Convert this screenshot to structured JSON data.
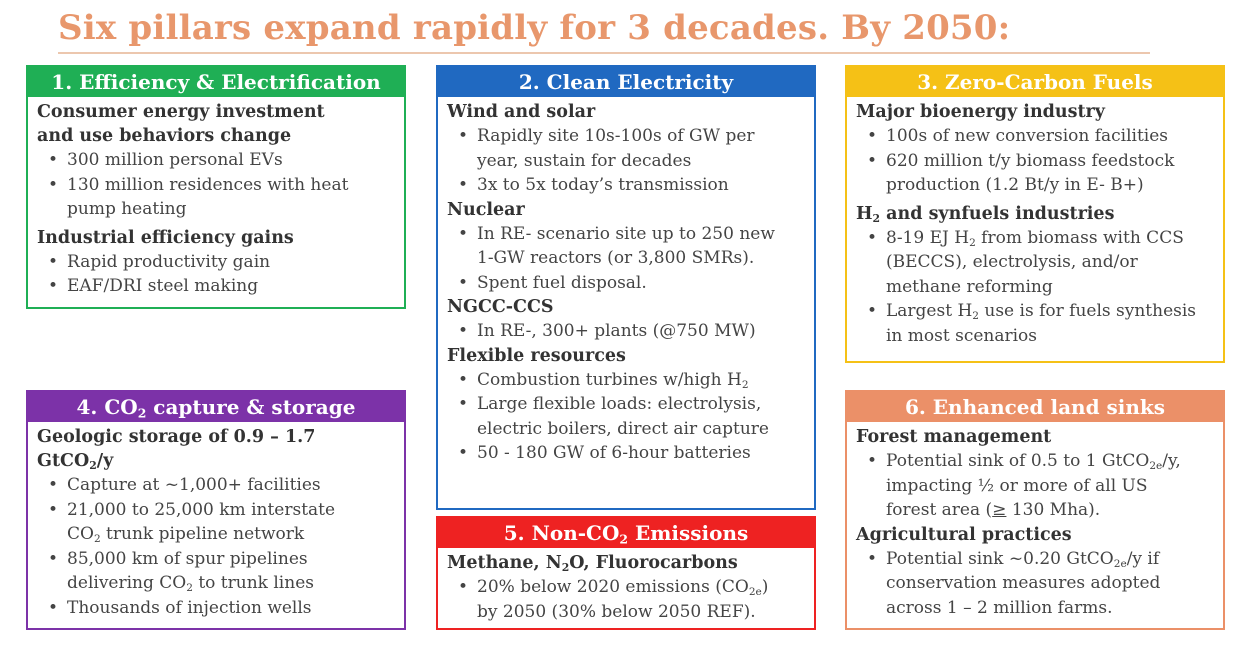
{
  "title": "Six pillars expand rapidly for 3 decades.  By 2050:",
  "pillars": {
    "efficiency": {
      "header": "1. Efficiency & Electrification",
      "s1_line1": "Consumer energy investment",
      "s1_line2": "and use behaviors change",
      "s1_b1": "300 million personal EVs",
      "s1_b2_l1": "130 million residences with heat",
      "s1_b2_l2": "pump heating",
      "s2": "Industrial efficiency gains",
      "s2_b1": "Rapid productivity gain",
      "s2_b2": "EAF/DRI steel making"
    },
    "clean": {
      "header": "2. Clean Electricity",
      "s1": "Wind and solar",
      "s1_b1_l1": "Rapidly site 10s-100s of GW per",
      "s1_b1_l2": "year, sustain for decades",
      "s1_b2": "3x to 5x today’s transmission",
      "s2": "Nuclear",
      "s2_b1_l1": "In RE- scenario site up to 250 new",
      "s2_b1_l2": "1-GW reactors (or 3,800 SMRs).",
      "s2_b2": "Spent fuel disposal.",
      "s3": "NGCC-CCS",
      "s3_b1": "In RE-, 300+ plants (@750 MW)",
      "s4": "Flexible resources",
      "s4_b1_pre": "Combustion turbines w/high H",
      "s4_b1_sub": "2",
      "s4_b2_l1": "Large flexible loads: electrolysis,",
      "s4_b2_l2": "electric boilers, direct air capture",
      "s4_b3": "50 - 180 GW of 6-hour batteries"
    },
    "fuels": {
      "header": "3. Zero-Carbon Fuels",
      "s1": "Major bioenergy industry",
      "s1_b1": "100s of new conversion facilities",
      "s1_b2_l1": "620 million t/y biomass feedstock",
      "s1_b2_l2": "production (1.2 Bt/y in E- B+)",
      "s2_pre": "H",
      "s2_sub": "2",
      "s2_post": " and synfuels industries",
      "s2_b1_pre": "8-19 EJ H",
      "s2_b1_sub": "2",
      "s2_b1_post": " from biomass with CCS",
      "s2_b1_l2": "(BECCS), electrolysis, and/or",
      "s2_b1_l3": "methane reforming",
      "s2_b2_pre": "Largest H",
      "s2_b2_sub": "2",
      "s2_b2_post": " use is for fuels synthesis",
      "s2_b2_l2": "in most scenarios"
    },
    "capture": {
      "header_pre": "4. CO",
      "header_sub": "2",
      "header_post": " capture & storage",
      "s1_l1": "Geologic storage of 0.9 – 1.7",
      "s1_l2_pre": "GtCO",
      "s1_l2_sub": "2",
      "s1_l2_post": "/y",
      "b1": "Capture at ~1,000+ facilities",
      "b2_l1": "21,000 to 25,000 km interstate",
      "b2_l2_pre": "CO",
      "b2_l2_sub": "2",
      "b2_l2_post": " trunk pipeline network",
      "b3_l1": "85,000 km of spur pipelines",
      "b3_l2_pre": "delivering CO",
      "b3_l2_sub": "2",
      "b3_l2_post": " to trunk lines",
      "b4": "Thousands of injection wells"
    },
    "nonco2": {
      "header_pre": "5. Non-CO",
      "header_sub": "2",
      "header_post": " Emissions",
      "s1_pre": "Methane, N",
      "s1_sub": "2",
      "s1_post": "O, Fluorocarbons",
      "b1_pre": "20% below 2020 emissions (CO",
      "b1_sub": "2e",
      "b1_post": ")",
      "b1_l2": "by 2050 (30% below 2050 REF)."
    },
    "land": {
      "header": "6. Enhanced land sinks",
      "s1": "Forest management",
      "b1_pre": "Potential sink of 0.5 to 1 GtCO",
      "b1_sub": "2e",
      "b1_post": "/y,",
      "b1_l2": "impacting ½ or more of all US",
      "b1_l3_pre": "forest area (",
      "b1_l3_ge": "≥",
      "b1_l3_post": " 130 Mha).",
      "s2": "Agricultural practices",
      "b2_pre": "Potential sink ~0.20 GtCO",
      "b2_sub": "2e",
      "b2_post": "/y if",
      "b2_l2": "conservation measures adopted",
      "b2_l3": "across 1 – 2 million farms."
    }
  }
}
